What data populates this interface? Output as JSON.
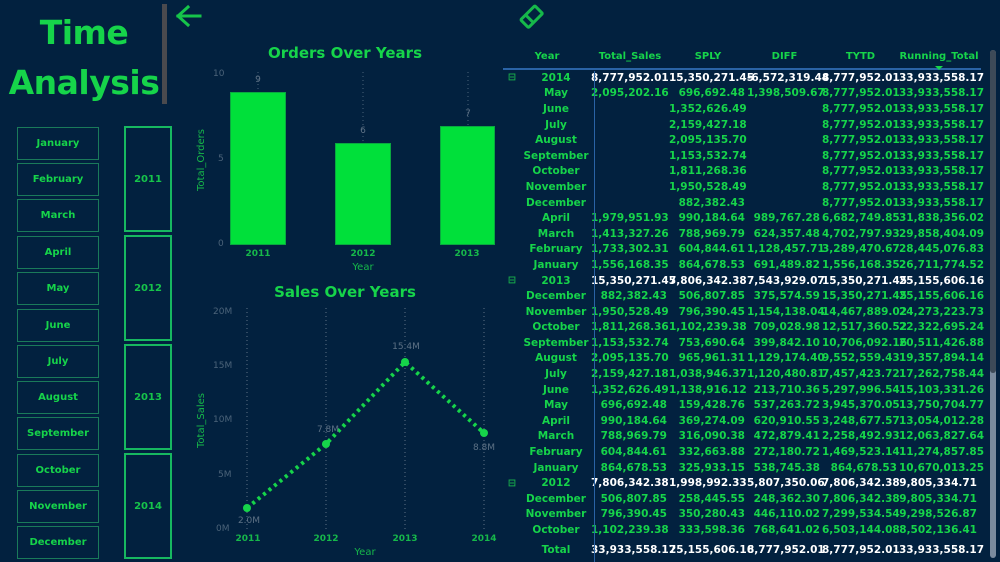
{
  "header": {
    "title_line1": "Time",
    "title_line2": "Analysis",
    "back_icon": "arrow-left-icon",
    "clear_icon": "eraser-icon"
  },
  "slicers": {
    "months": [
      "January",
      "February",
      "March",
      "April",
      "May",
      "June",
      "July",
      "August",
      "September",
      "October",
      "November",
      "December"
    ],
    "years": [
      "2011",
      "2012",
      "2013",
      "2014"
    ]
  },
  "colors": {
    "background": "#02213f",
    "accent": "#16d44a",
    "bar": "#00e03a",
    "subtotal_text": "#ffffff",
    "table_rule": "#2a63a5"
  },
  "chart_data": [
    {
      "type": "bar",
      "title": "Orders Over Years",
      "xlabel": "Year",
      "ylabel": "Total_Orders",
      "categories": [
        "2011",
        "2012",
        "2013"
      ],
      "values": [
        9,
        6,
        7
      ],
      "data_labels": [
        "9",
        "6",
        "7"
      ],
      "yticks": [
        "0",
        "5",
        "10"
      ],
      "ylim": [
        0,
        10
      ],
      "grid": false
    },
    {
      "type": "line",
      "title": "Sales Over Years",
      "xlabel": "Year",
      "ylabel": "Total_Sales",
      "categories": [
        "2011",
        "2012",
        "2013",
        "2014"
      ],
      "values": [
        2.0,
        7.8,
        15.4,
        8.8
      ],
      "unit": "M",
      "data_labels": [
        "2.0M",
        "7.8M",
        "15.4M",
        "8.8M"
      ],
      "yticks": [
        "0M",
        "5M",
        "10M",
        "15M",
        "20M"
      ],
      "ylim": [
        0,
        20
      ],
      "grid": "vertical dotted",
      "line_style": "dotted"
    }
  ],
  "table": {
    "columns": [
      "Year",
      "Total_Sales",
      "SPLY",
      "DIFF",
      "TYTD",
      "Running_Total"
    ],
    "sorted_column": "Running_Total",
    "rows": [
      {
        "type": "subtotal",
        "year": "2014",
        "v": [
          "8,777,952.01",
          "15,350,271.45",
          "-6,572,319.44",
          "8,777,952.01",
          "33,933,558.17"
        ]
      },
      {
        "type": "month",
        "year": "May",
        "v": [
          "2,095,202.16",
          "696,692.48",
          "1,398,509.67",
          "8,777,952.01",
          "33,933,558.17"
        ]
      },
      {
        "type": "month",
        "year": "June",
        "v": [
          "",
          "1,352,626.49",
          "",
          "8,777,952.01",
          "33,933,558.17"
        ]
      },
      {
        "type": "month",
        "year": "July",
        "v": [
          "",
          "2,159,427.18",
          "",
          "8,777,952.01",
          "33,933,558.17"
        ]
      },
      {
        "type": "month",
        "year": "August",
        "v": [
          "",
          "2,095,135.70",
          "",
          "8,777,952.01",
          "33,933,558.17"
        ]
      },
      {
        "type": "month",
        "year": "September",
        "v": [
          "",
          "1,153,532.74",
          "",
          "8,777,952.01",
          "33,933,558.17"
        ]
      },
      {
        "type": "month",
        "year": "October",
        "v": [
          "",
          "1,811,268.36",
          "",
          "8,777,952.01",
          "33,933,558.17"
        ]
      },
      {
        "type": "month",
        "year": "November",
        "v": [
          "",
          "1,950,528.49",
          "",
          "8,777,952.01",
          "33,933,558.17"
        ]
      },
      {
        "type": "month",
        "year": "December",
        "v": [
          "",
          "882,382.43",
          "",
          "8,777,952.01",
          "33,933,558.17"
        ]
      },
      {
        "type": "month",
        "year": "April",
        "v": [
          "1,979,951.93",
          "990,184.64",
          "989,767.28",
          "6,682,749.85",
          "31,838,356.02"
        ]
      },
      {
        "type": "month",
        "year": "March",
        "v": [
          "1,413,327.26",
          "788,969.79",
          "624,357.48",
          "4,702,797.93",
          "29,858,404.09"
        ]
      },
      {
        "type": "month",
        "year": "February",
        "v": [
          "1,733,302.31",
          "604,844.61",
          "1,128,457.71",
          "3,289,470.67",
          "28,445,076.83"
        ]
      },
      {
        "type": "month",
        "year": "January",
        "v": [
          "1,556,168.35",
          "864,678.53",
          "691,489.82",
          "1,556,168.35",
          "26,711,774.52"
        ]
      },
      {
        "type": "subtotal",
        "year": "2013",
        "v": [
          "15,350,271.45",
          "7,806,342.38",
          "7,543,929.07",
          "15,350,271.45",
          "25,155,606.16"
        ]
      },
      {
        "type": "month",
        "year": "December",
        "v": [
          "882,382.43",
          "506,807.85",
          "375,574.59",
          "15,350,271.45",
          "25,155,606.16"
        ]
      },
      {
        "type": "month",
        "year": "November",
        "v": [
          "1,950,528.49",
          "796,390.45",
          "1,154,138.04",
          "14,467,889.02",
          "24,273,223.73"
        ]
      },
      {
        "type": "month",
        "year": "October",
        "v": [
          "1,811,268.36",
          "1,102,239.38",
          "709,028.98",
          "12,517,360.52",
          "22,322,695.24"
        ]
      },
      {
        "type": "month",
        "year": "September",
        "v": [
          "1,153,532.74",
          "753,690.64",
          "399,842.10",
          "10,706,092.16",
          "20,511,426.88"
        ]
      },
      {
        "type": "month",
        "year": "August",
        "v": [
          "2,095,135.70",
          "965,961.31",
          "1,129,174.40",
          "9,552,559.43",
          "19,357,894.14"
        ]
      },
      {
        "type": "month",
        "year": "July",
        "v": [
          "2,159,427.18",
          "1,038,946.37",
          "1,120,480.81",
          "7,457,423.72",
          "17,262,758.44"
        ]
      },
      {
        "type": "month",
        "year": "June",
        "v": [
          "1,352,626.49",
          "1,138,916.12",
          "213,710.36",
          "5,297,996.54",
          "15,103,331.26"
        ]
      },
      {
        "type": "month",
        "year": "May",
        "v": [
          "696,692.48",
          "159,428.76",
          "537,263.72",
          "3,945,370.05",
          "13,750,704.77"
        ]
      },
      {
        "type": "month",
        "year": "April",
        "v": [
          "990,184.64",
          "369,274.09",
          "620,910.55",
          "3,248,677.57",
          "13,054,012.28"
        ]
      },
      {
        "type": "month",
        "year": "March",
        "v": [
          "788,969.79",
          "316,090.38",
          "472,879.41",
          "2,258,492.93",
          "12,063,827.64"
        ]
      },
      {
        "type": "month",
        "year": "February",
        "v": [
          "604,844.61",
          "332,663.88",
          "272,180.72",
          "1,469,523.14",
          "11,274,857.85"
        ]
      },
      {
        "type": "month",
        "year": "January",
        "v": [
          "864,678.53",
          "325,933.15",
          "538,745.38",
          "864,678.53",
          "10,670,013.25"
        ]
      },
      {
        "type": "subtotal",
        "year": "2012",
        "v": [
          "7,806,342.38",
          "1,998,992.33",
          "5,807,350.06",
          "7,806,342.38",
          "9,805,334.71"
        ]
      },
      {
        "type": "month",
        "year": "December",
        "v": [
          "506,807.85",
          "258,445.55",
          "248,362.30",
          "7,806,342.38",
          "9,805,334.71"
        ]
      },
      {
        "type": "month",
        "year": "November",
        "v": [
          "796,390.45",
          "350,280.43",
          "446,110.02",
          "7,299,534.54",
          "9,298,526.87"
        ]
      },
      {
        "type": "month",
        "year": "October",
        "v": [
          "1,102,239.38",
          "333,598.36",
          "768,641.02",
          "6,503,144.08",
          "8,502,136.41"
        ]
      }
    ],
    "total": {
      "label": "Total",
      "v": [
        "33,933,558.17",
        "25,155,606.16",
        "8,777,952.01",
        "8,777,952.01",
        "33,933,558.17"
      ]
    },
    "collapse_icon": "⊟"
  }
}
